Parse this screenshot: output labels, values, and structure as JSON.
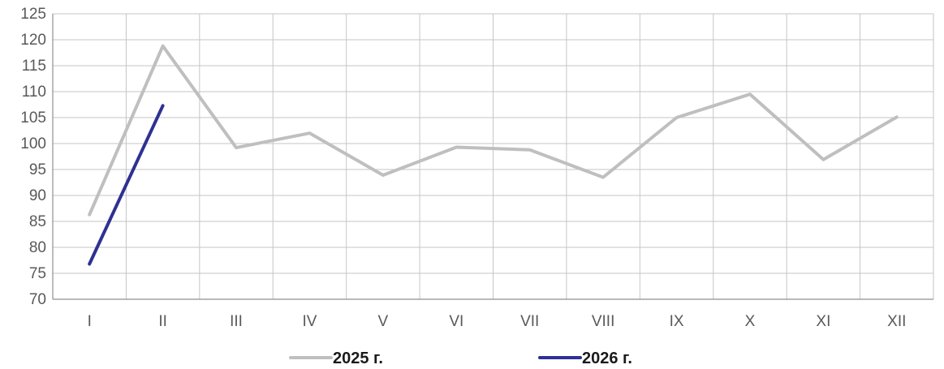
{
  "chart_data": {
    "type": "line",
    "categories": [
      "I",
      "II",
      "III",
      "IV",
      "V",
      "VI",
      "VII",
      "VIII",
      "IX",
      "X",
      "XI",
      "XII"
    ],
    "series": [
      {
        "name": "2025 г.",
        "color": "#bfbfbf",
        "values": [
          86.3,
          118.8,
          99.2,
          102.0,
          93.9,
          99.3,
          98.8,
          93.5,
          105.0,
          109.5,
          96.9,
          105.1
        ]
      },
      {
        "name": "2026 г.",
        "color": "#2e3192",
        "values": [
          76.8,
          107.3,
          null,
          null,
          null,
          null,
          null,
          null,
          null,
          null,
          null,
          null
        ]
      }
    ],
    "yticks": [
      70,
      75,
      80,
      85,
      90,
      95,
      100,
      105,
      110,
      115,
      120,
      125
    ],
    "ylim": [
      70,
      125
    ],
    "title": "",
    "xlabel": "",
    "ylabel": "",
    "grid": true,
    "legend": "bottom-center"
  }
}
